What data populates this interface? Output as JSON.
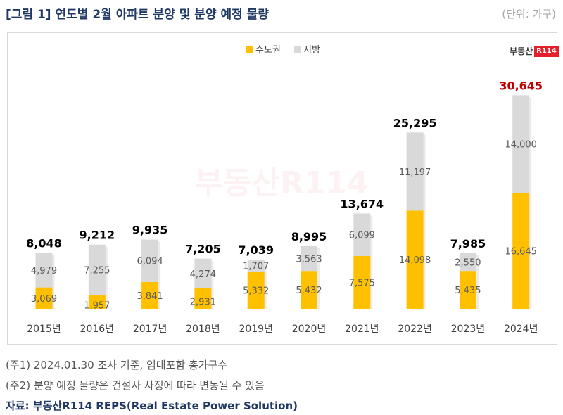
{
  "title": "[그림 1] 연도별 2월 아파트 분양 및 분양 예정 물량",
  "unit_note": "(단위: 가구)",
  "logo": {
    "text": "부동산",
    "box": "R114"
  },
  "watermark": "부동산R114",
  "notes": [
    "(주1) 2024.01.30 조사 기준, 임대포함 총가구수",
    "(주2) 분양 예정 물량은 건설사 사정에 따라 변동될 수 있음"
  ],
  "source": "자료: 부동산R114 REPS(Real Estate Power Solution)",
  "colors": {
    "capital": "#ffc000",
    "local": "#d9d9d9",
    "highlight_total": "#c00000"
  },
  "chart_data": {
    "type": "bar",
    "stacked": true,
    "categories": [
      "2015년",
      "2016년",
      "2017년",
      "2018년",
      "2019년",
      "2020년",
      "2021년",
      "2022년",
      "2023년",
      "2024년"
    ],
    "series": [
      {
        "name": "수도권",
        "values": [
          3069,
          1957,
          3841,
          2931,
          5332,
          5432,
          7575,
          14098,
          5435,
          16645
        ]
      },
      {
        "name": "지방",
        "values": [
          4979,
          7255,
          6094,
          4274,
          1707,
          3563,
          6099,
          11197,
          2550,
          14000
        ]
      }
    ],
    "totals": [
      8048,
      9212,
      9935,
      7205,
      7039,
      8995,
      13674,
      25295,
      7985,
      30645
    ],
    "ylim": [
      0,
      33000
    ],
    "legend": "top-center",
    "grid": false
  }
}
